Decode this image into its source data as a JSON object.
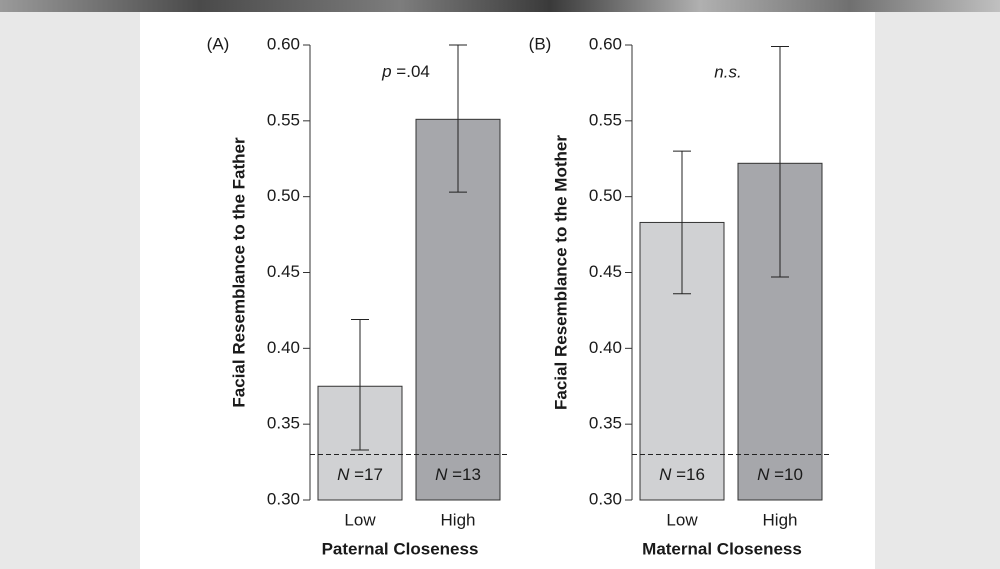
{
  "chart_data": [
    {
      "type": "bar",
      "panel_label": "(A)",
      "annotation": "p =.04",
      "y_label": "Facial Resemblance to the Father",
      "x_label": "Paternal Closeness",
      "categories": [
        "Low",
        "High"
      ],
      "values": [
        0.375,
        0.551
      ],
      "error_low": [
        0.333,
        0.503
      ],
      "error_high": [
        0.419,
        0.6
      ],
      "bar_labels": [
        "N =17",
        "N =13"
      ],
      "colors": [
        "#d0d1d3",
        "#a6a7ab"
      ],
      "reference_line": 0.33,
      "ylim": [
        0.3,
        0.6
      ],
      "yticks": [
        {
          "value": 0.3,
          "label": "0.30"
        },
        0.35,
        {
          "value": 0.4,
          "label": "0.40"
        },
        0.45,
        {
          "value": 0.5,
          "label": "0.50"
        },
        0.55,
        {
          "value": 0.6,
          "label": "0.60"
        }
      ]
    },
    {
      "type": "bar",
      "panel_label": "(B)",
      "annotation": "n.s.",
      "y_label": "Facial Resemblance to the Mother",
      "x_label": "Maternal Closeness",
      "categories": [
        "Low",
        "High"
      ],
      "values": [
        0.483,
        0.522
      ],
      "error_low": [
        0.436,
        0.447
      ],
      "error_high": [
        0.53,
        0.599
      ],
      "bar_labels": [
        "N =16",
        "N =10"
      ],
      "colors": [
        "#d0d1d3",
        "#a6a7ab"
      ],
      "reference_line": 0.33,
      "ylim": [
        0.3,
        0.6
      ],
      "yticks": [
        {
          "value": 0.3,
          "label": "0.30"
        },
        0.35,
        {
          "value": 0.4,
          "label": "0.40"
        },
        0.45,
        {
          "value": 0.5,
          "label": "0.50"
        },
        0.55,
        {
          "value": 0.6,
          "label": "0.60"
        }
      ]
    }
  ]
}
